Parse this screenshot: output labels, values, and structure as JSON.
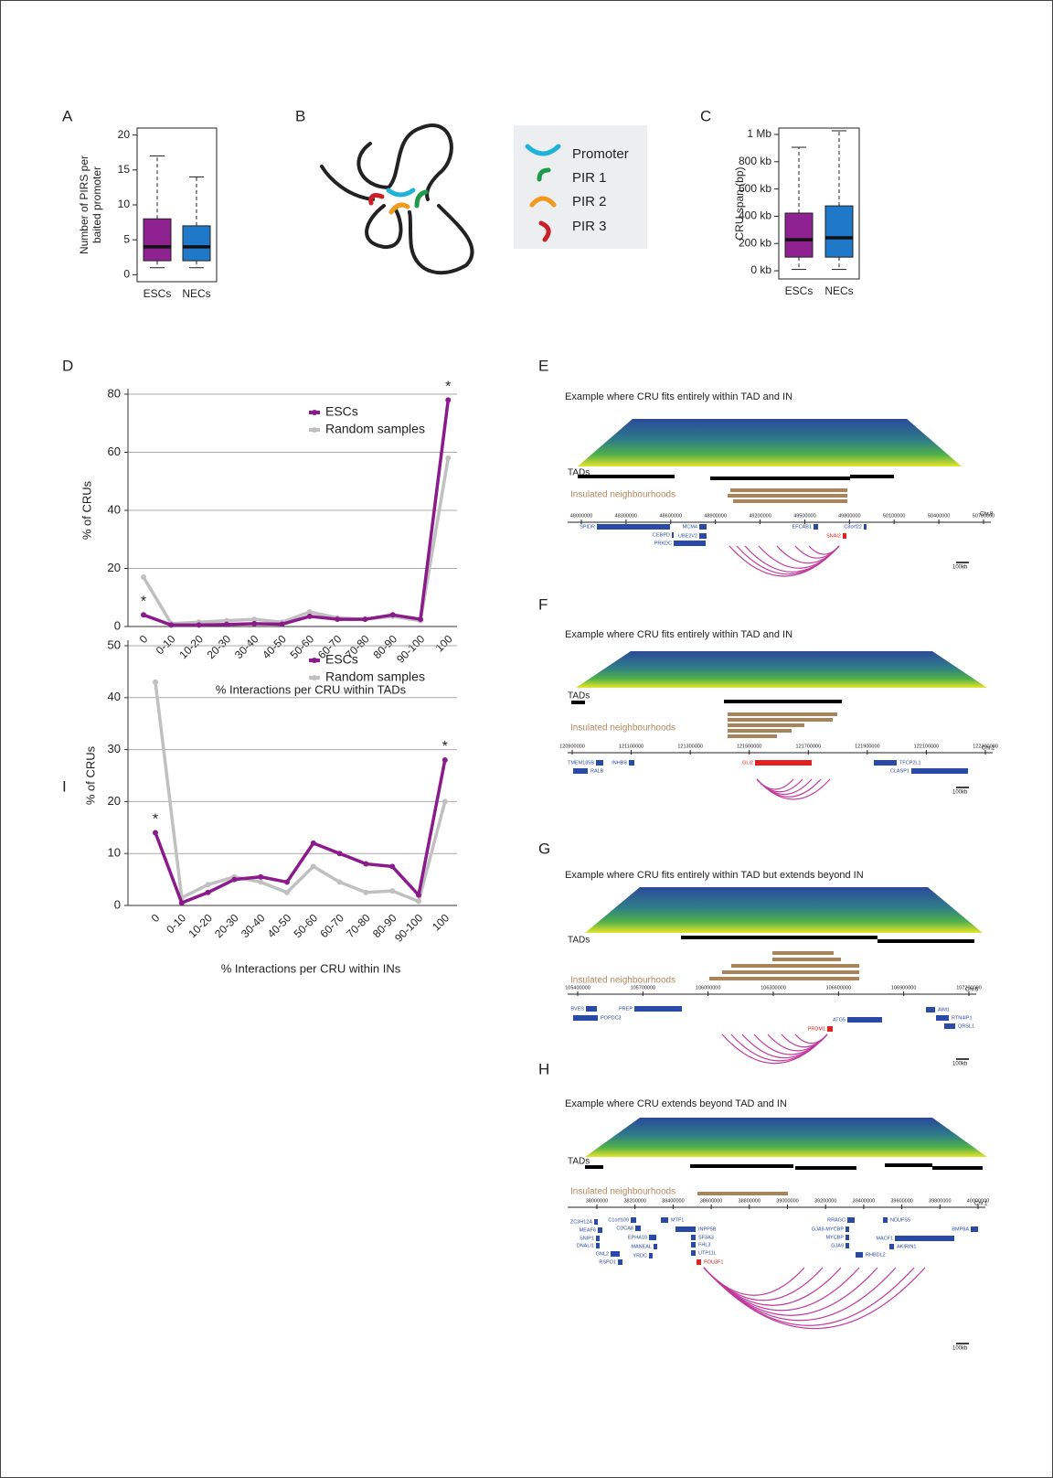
{
  "chart_data": [
    {
      "type": "box",
      "panel": "A",
      "ylabel": [
        "Number of PIRS per",
        "baited promoter"
      ],
      "categories": [
        "ESCs",
        "NECs"
      ],
      "colors": [
        "#8e2290",
        "#1f78c8"
      ],
      "stats": [
        {
          "min": 1,
          "q1": 2,
          "median": 4,
          "q3": 8,
          "max": 17
        },
        {
          "min": 1,
          "q1": 2,
          "median": 4,
          "q3": 7,
          "max": 14
        }
      ],
      "ylim": [
        -1,
        21
      ],
      "yticks": [
        0,
        5,
        10,
        15,
        20
      ]
    },
    {
      "type": "box",
      "panel": "C",
      "ylabel": [
        "CRU span (bp)"
      ],
      "categories": [
        "ESCs",
        "NECs"
      ],
      "colors": [
        "#8e2290",
        "#1f78c8"
      ],
      "stats": [
        {
          "min": 10000,
          "q1": 100000,
          "median": 228000,
          "q3": 423000,
          "max": 906000
        },
        {
          "min": 10000,
          "q1": 100000,
          "median": 242000,
          "q3": 476000,
          "max": 1027000
        }
      ],
      "ylim": [
        -60000,
        1047000
      ],
      "yticks": [
        {
          "value": 0,
          "label": "0 kb"
        },
        {
          "value": 200000,
          "label": "200 kb"
        },
        {
          "value": 400000,
          "label": "400 kb"
        },
        {
          "value": 600000,
          "label": "600 kb"
        },
        {
          "value": 800000,
          "label": "800 kb"
        },
        {
          "value": 1000000,
          "label": "1 Mb"
        }
      ]
    },
    {
      "type": "line",
      "panel": "D",
      "xlabel": "% Interactions per CRU within TADs",
      "ylabel": "% of CRUs",
      "categories": [
        "0",
        "0-10",
        "10-20",
        "20-30",
        "30-40",
        "40-50",
        "50-60",
        "60-70",
        "70-80",
        "80-90",
        "90-100",
        "100"
      ],
      "series": [
        {
          "name": "ESCs",
          "color": "#8b1a8b",
          "values": [
            4,
            0.5,
            0.5,
            0.7,
            1,
            0.8,
            3.5,
            2.5,
            2.5,
            4,
            2.5,
            78
          ]
        },
        {
          "name": "Random samples",
          "color": "#c0c0c0",
          "values": [
            17,
            1,
            1.5,
            2,
            2.5,
            1.5,
            5,
            3,
            2.5,
            3.5,
            2,
            58
          ]
        }
      ],
      "annotations": [
        "*",
        "*"
      ],
      "ylim": [
        0,
        80
      ],
      "yticks": [
        0,
        20,
        40,
        60,
        80
      ],
      "grid": true,
      "legend": "upper center"
    },
    {
      "type": "line",
      "panel": "I",
      "xlabel": "% Interactions per CRU within INs",
      "ylabel": "% of CRUs",
      "categories": [
        "0",
        "0-10",
        "10-20",
        "20-30",
        "30-40",
        "40-50",
        "50-60",
        "60-70",
        "70-80",
        "80-90",
        "90-100",
        "100"
      ],
      "series": [
        {
          "name": "ESCs",
          "color": "#8b1a8b",
          "values": [
            14,
            0.5,
            2.5,
            5,
            5.5,
            4.5,
            12,
            10,
            8,
            7.5,
            2,
            28
          ]
        },
        {
          "name": "Random samples",
          "color": "#c0c0c0",
          "values": [
            43,
            1.5,
            4,
            5.5,
            4.5,
            2.5,
            7.5,
            4.5,
            2.5,
            2.8,
            0.8,
            20
          ]
        }
      ],
      "annotations": [
        "*",
        "*"
      ],
      "ylim": [
        0,
        50
      ],
      "yticks": [
        0,
        10,
        20,
        30,
        40,
        50
      ],
      "grid": true,
      "legend": "upper center"
    }
  ],
  "diagram": {
    "panel": "B",
    "legend": [
      "Promoter",
      "PIR 1",
      "PIR 2",
      "PIR 3"
    ]
  },
  "genome_panels": [
    {
      "panel": "E",
      "title": "Example where CRU fits entirely within TAD and IN",
      "tads_label": "TADs",
      "in_label": "Insulated neighbourhoods",
      "chromosome": "Chr.8",
      "scale": "100kb",
      "coordinates": [
        "48000000",
        "48300000",
        "48600000",
        "48900000",
        "49200000",
        "49500000",
        "49800000",
        "50100000",
        "50400000",
        "50700000"
      ],
      "genes": [
        {
          "name": "SPIDR",
          "color": "#2a4aa8"
        },
        {
          "name": "CEBPD",
          "color": "#2a4aa8"
        },
        {
          "name": "PRKDC",
          "color": "#2a4aa8"
        },
        {
          "name": "MCM4",
          "color": "#2a4aa8"
        },
        {
          "name": "UBE2V2",
          "color": "#2a4aa8"
        },
        {
          "name": "EFCAB1",
          "color": "#2a4aa8"
        },
        {
          "name": "SNAI2",
          "color": "#e3201c"
        },
        {
          "name": "C8orf22",
          "color": "#2a4aa8"
        }
      ]
    },
    {
      "panel": "F",
      "title": "Example where CRU fits entirely within TAD and IN",
      "tads_label": "TADs",
      "in_label": "Insulated neighbourhoods",
      "chromosome": "Chr.2",
      "scale": "100kb",
      "coordinates": [
        "120900000",
        "121100000",
        "121300000",
        "121500000",
        "121700000",
        "121900000",
        "122100000",
        "122300000"
      ],
      "genes": [
        {
          "name": "TMEM185B",
          "color": "#2a4aa8"
        },
        {
          "name": "RALB",
          "color": "#2a4aa8"
        },
        {
          "name": "INHBB",
          "color": "#2a4aa8"
        },
        {
          "name": "GLI2",
          "color": "#e3201c"
        },
        {
          "name": "TFCP2L1",
          "color": "#2a4aa8"
        },
        {
          "name": "CLASP1",
          "color": "#2a4aa8"
        }
      ]
    },
    {
      "panel": "G",
      "title": "Example where CRU fits entirely within TAD but extends beyond IN",
      "tads_label": "TADs",
      "in_label": "Insulated neighbourhoods",
      "chromosome": "Chr.6",
      "scale": "100kb",
      "coordinates": [
        "105400000",
        "105700000",
        "106000000",
        "106300000",
        "106600000",
        "106900000",
        "107200000"
      ],
      "genes": [
        {
          "name": "BVES",
          "color": "#2a4aa8"
        },
        {
          "name": "POPDC3",
          "color": "#2a4aa8"
        },
        {
          "name": "PREP",
          "color": "#2a4aa8"
        },
        {
          "name": "ATG5",
          "color": "#2a4aa8"
        },
        {
          "name": "PRDM1",
          "color": "#e3201c"
        },
        {
          "name": "AIM1",
          "color": "#2a4aa8"
        },
        {
          "name": "RTN4IP1",
          "color": "#2a4aa8"
        },
        {
          "name": "QRSL1",
          "color": "#2a4aa8"
        }
      ]
    },
    {
      "panel": "H",
      "title": "Example where CRU extends beyond  TAD and IN",
      "tads_label": "TADs",
      "in_label": "Insulated neighbourhoods",
      "chromosome": "Chr.1",
      "scale": "100kb",
      "coordinates": [
        "38000000",
        "38200000",
        "38400000",
        "38600000",
        "38800000",
        "39000000",
        "39200000",
        "39400000",
        "39600000",
        "39800000",
        "40000000"
      ],
      "genes": [
        {
          "name": "ZC3H12A",
          "color": "#2a4aa8"
        },
        {
          "name": "MEAF6",
          "color": "#2a4aa8"
        },
        {
          "name": "SNIP1",
          "color": "#2a4aa8"
        },
        {
          "name": "DNALI1",
          "color": "#2a4aa8"
        },
        {
          "name": "GNL2",
          "color": "#2a4aa8"
        },
        {
          "name": "RSPO1",
          "color": "#2a4aa8"
        },
        {
          "name": "C1orf109",
          "color": "#2a4aa8"
        },
        {
          "name": "CDCA8",
          "color": "#2a4aa8"
        },
        {
          "name": "EPHA10",
          "color": "#2a4aa8"
        },
        {
          "name": "MANEAL",
          "color": "#2a4aa8"
        },
        {
          "name": "YRDC",
          "color": "#2a4aa8"
        },
        {
          "name": "MTF1",
          "color": "#2a4aa8"
        },
        {
          "name": "INPP5B",
          "color": "#2a4aa8"
        },
        {
          "name": "SF3A3",
          "color": "#2a4aa8"
        },
        {
          "name": "FHL3",
          "color": "#2a4aa8"
        },
        {
          "name": "UTP11L",
          "color": "#2a4aa8"
        },
        {
          "name": "POU3F1",
          "color": "#e3201c"
        },
        {
          "name": "RRAGC",
          "color": "#2a4aa8"
        },
        {
          "name": "GJA9-MYCBP",
          "color": "#2a4aa8"
        },
        {
          "name": "MYCBP",
          "color": "#2a4aa8"
        },
        {
          "name": "GJA9",
          "color": "#2a4aa8"
        },
        {
          "name": "RHBDL2",
          "color": "#2a4aa8"
        },
        {
          "name": "NDUFS5",
          "color": "#2a4aa8"
        },
        {
          "name": "MACF1",
          "color": "#2a4aa8"
        },
        {
          "name": "AKIRIN1",
          "color": "#2a4aa8"
        },
        {
          "name": "BMP8A",
          "color": "#2a4aa8"
        }
      ]
    }
  ]
}
